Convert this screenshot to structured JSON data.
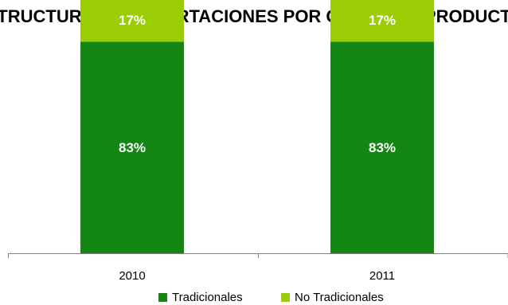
{
  "chart_data": {
    "type": "bar",
    "stacked": true,
    "percent": true,
    "title": "ESTRUCTURA DE EXPORTACIONES POR GRUPO DE PRODUCTOS",
    "categories": [
      "2010",
      "2011"
    ],
    "series": [
      {
        "name": "Tradicionales",
        "values": [
          83,
          83
        ],
        "labels": [
          "83%",
          "83%"
        ],
        "color": "#138613"
      },
      {
        "name": "No Tradicionales",
        "values": [
          17,
          17
        ],
        "labels": [
          "17%",
          "17%"
        ],
        "color": "#9acd03"
      }
    ],
    "ylim": [
      0,
      100
    ],
    "grid": false,
    "legend_position": "bottom"
  }
}
